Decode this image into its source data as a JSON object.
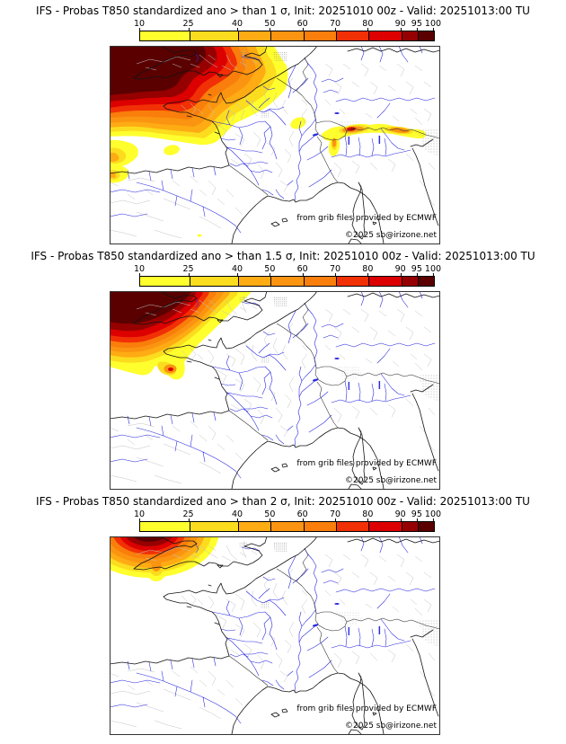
{
  "panels": [
    {
      "sigma": "1",
      "title": "IFS - Probas T850  standardized ano > than 1 σ, Init: 20251010 00z - Valid: 20251013:00 TU"
    },
    {
      "sigma": "1.5",
      "title": "IFS - Probas T850  standardized ano > than 1.5 σ, Init: 20251010 00z - Valid: 20251013:00 TU"
    },
    {
      "sigma": "2",
      "title": "IFS - Probas T850  standardized ano > than 2 σ, Init: 20251010 00z - Valid: 20251013:00 TU"
    }
  ],
  "colorbar": {
    "min": 10,
    "max": 100,
    "tick_labels": [
      "10",
      "25",
      "40",
      "50",
      "60",
      "70",
      "80",
      "90",
      "95",
      "100"
    ],
    "tick_values": [
      10,
      25,
      40,
      50,
      60,
      70,
      80,
      90,
      95,
      100
    ],
    "dashed_divider_value": 95,
    "palette": [
      "#FFFF2E",
      "#FCDC1E",
      "#FFAB14",
      "#FB9410",
      "#F97E0B",
      "#F23005",
      "#DC0000",
      "#960000",
      "#5A0000"
    ],
    "unit": "%"
  },
  "map": {
    "attribution": "from grib files provided by ECMWF",
    "copyright": "©2025 sb@irizone.net",
    "colors": {
      "coast": "#141414",
      "border": "#2a2a2a",
      "river": "#2d2de0",
      "admin": "#c3c3c3",
      "terrain": "#9a9a9a",
      "lake": "#2d2de0",
      "frame": "#333333",
      "background": "#ffffff"
    }
  }
}
